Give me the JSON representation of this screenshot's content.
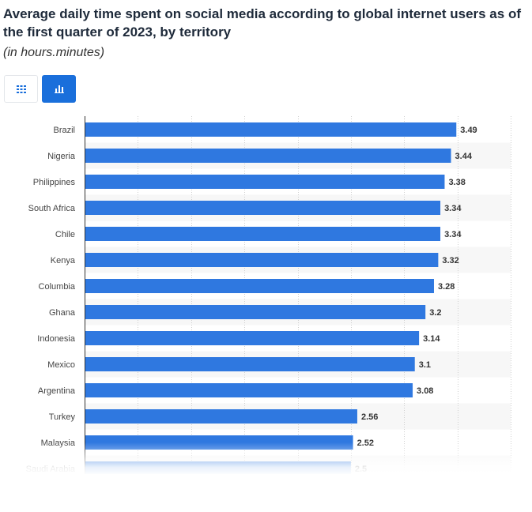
{
  "chart_data": {
    "type": "bar",
    "orientation": "horizontal",
    "title": "Average daily time spent on social media according to global internet users as of the first quarter of 2023, by territory",
    "subtitle": "(in hours.minutes)",
    "categories": [
      "Brazil",
      "Nigeria",
      "Philippines",
      "South Africa",
      "Chile",
      "Kenya",
      "Columbia",
      "Ghana",
      "Indonesia",
      "Mexico",
      "Argentina",
      "Turkey",
      "Malaysia",
      "Saudi Arabia"
    ],
    "values": [
      3.49,
      3.44,
      3.38,
      3.34,
      3.34,
      3.32,
      3.28,
      3.2,
      3.14,
      3.1,
      3.08,
      2.56,
      2.52,
      2.5
    ],
    "labels": [
      "3.49",
      "3.44",
      "3.38",
      "3.34",
      "3.34",
      "3.32",
      "3.28",
      "3.2",
      "3.14",
      "3.1",
      "3.08",
      "2.56",
      "2.52",
      "2.5"
    ],
    "xlim": [
      0,
      4
    ],
    "bar_color": "#2f78e0",
    "grid": true,
    "legend": "none"
  },
  "toolbar": {
    "table_icon": "table-grid-icon",
    "chart_icon": "bar-chart-icon",
    "active_color": "#1a6fdb"
  }
}
